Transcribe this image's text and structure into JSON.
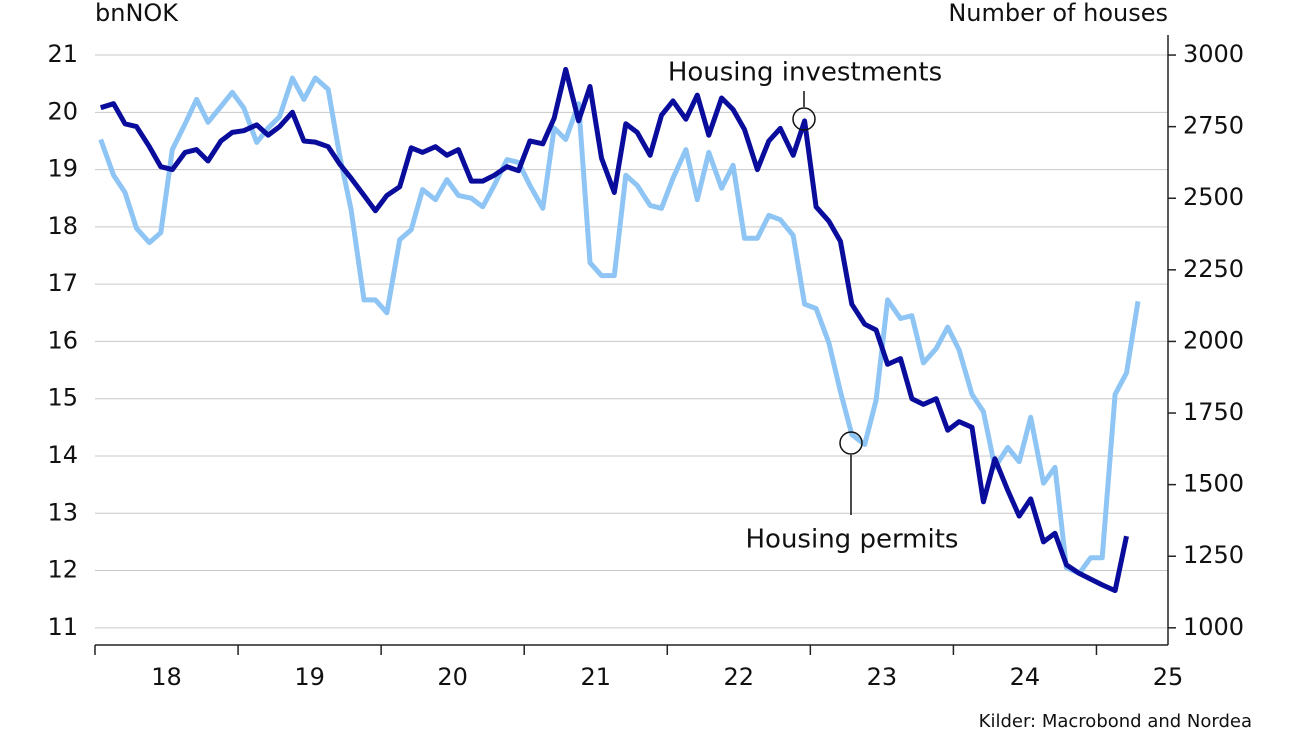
{
  "chart_data": {
    "type": "line",
    "y_label": "bnNOK",
    "y2_label": "Number of houses",
    "source": "Kilder: Macrobond and Nordea",
    "annotations": [
      "Housing investments",
      "Housing permits"
    ],
    "x": [
      18.04,
      18.13,
      18.21,
      18.29,
      18.38,
      18.46,
      18.54,
      18.63,
      18.71,
      18.79,
      18.88,
      18.96,
      19.04,
      19.13,
      19.21,
      19.29,
      19.38,
      19.46,
      19.54,
      19.63,
      19.71,
      19.79,
      19.88,
      19.96,
      20.04,
      20.13,
      20.21,
      20.29,
      20.38,
      20.46,
      20.54,
      20.63,
      20.71,
      20.79,
      20.88,
      20.96,
      21.04,
      21.13,
      21.21,
      21.29,
      21.38,
      21.46,
      21.54,
      21.63,
      21.71,
      21.79,
      21.88,
      21.96,
      22.04,
      22.13,
      22.21,
      22.29,
      22.38,
      22.46,
      22.54,
      22.63,
      22.71,
      22.79,
      22.88,
      22.96,
      23.04,
      23.13,
      23.21,
      23.29,
      23.38,
      23.46,
      23.54,
      23.63,
      23.71,
      23.79,
      23.88,
      23.96,
      24.04,
      24.13,
      24.21,
      24.29,
      24.38,
      24.46,
      24.54,
      24.63,
      24.71,
      24.79,
      24.88,
      24.96,
      25.04,
      25.13,
      25.21,
      25.29
    ],
    "series": [
      {
        "name": "Housing investments",
        "color": "#0a0d9c",
        "axis": "y",
        "values": [
          20.08,
          20.15,
          19.8,
          19.75,
          19.4,
          19.05,
          19.0,
          19.3,
          19.35,
          19.15,
          19.5,
          19.65,
          19.68,
          19.78,
          19.6,
          19.75,
          20.0,
          19.5,
          19.48,
          19.4,
          19.1,
          18.85,
          18.55,
          18.28,
          18.55,
          18.7,
          19.38,
          19.3,
          19.4,
          19.25,
          19.35,
          18.8,
          18.8,
          18.9,
          19.05,
          18.98,
          19.5,
          19.45,
          19.9,
          20.75,
          19.85,
          20.45,
          19.2,
          18.6,
          19.8,
          19.65,
          19.25,
          19.95,
          20.2,
          19.88,
          20.3,
          19.6,
          20.25,
          20.05,
          19.7,
          19.0,
          19.5,
          19.72,
          19.25,
          19.85,
          18.35,
          18.1,
          17.75,
          16.65,
          16.3,
          16.2,
          15.6,
          15.7,
          15.0,
          14.9,
          15.0,
          14.45,
          14.6,
          14.5,
          13.2,
          13.95,
          13.4,
          12.95,
          13.25,
          12.5,
          12.65,
          12.1,
          11.95,
          11.85,
          11.75,
          11.65,
          12.6,
          null
        ]
      },
      {
        "name": "Housing permits",
        "color": "#8ec5f4",
        "axis": "y2",
        "values": [
          2705,
          2580,
          2520,
          2395,
          2345,
          2380,
          2670,
          2760,
          2845,
          2765,
          2820,
          2870,
          2815,
          2695,
          2745,
          2785,
          2920,
          2845,
          2920,
          2880,
          2650,
          2460,
          2145,
          2145,
          2100,
          2355,
          2390,
          2530,
          2495,
          2565,
          2510,
          2500,
          2470,
          2545,
          2635,
          2625,
          2545,
          2465,
          2745,
          2705,
          2830,
          2275,
          2230,
          2230,
          2580,
          2545,
          2475,
          2465,
          2570,
          2670,
          2495,
          2660,
          2535,
          2615,
          2360,
          2360,
          2440,
          2425,
          2370,
          2130,
          2115,
          1995,
          1825,
          1675,
          1640,
          1795,
          2145,
          2080,
          2090,
          1925,
          1975,
          2050,
          1970,
          1815,
          1755,
          1560,
          1630,
          1580,
          1735,
          1505,
          1560,
          1210,
          1190,
          1245,
          1245,
          1815,
          1890,
          2140
        ]
      }
    ],
    "xlim": [
      18,
      25.5
    ],
    "xticks": [
      18,
      19,
      20,
      21,
      22,
      23,
      24,
      25
    ],
    "ylim": [
      10.7,
      21.35
    ],
    "yticks": [
      11,
      12,
      13,
      14,
      15,
      16,
      17,
      18,
      19,
      20,
      21
    ],
    "y2lim": [
      940,
      3070
    ],
    "y2ticks": [
      1000,
      1250,
      1500,
      1750,
      2000,
      2250,
      2500,
      2750,
      3000
    ],
    "grid": true
  }
}
